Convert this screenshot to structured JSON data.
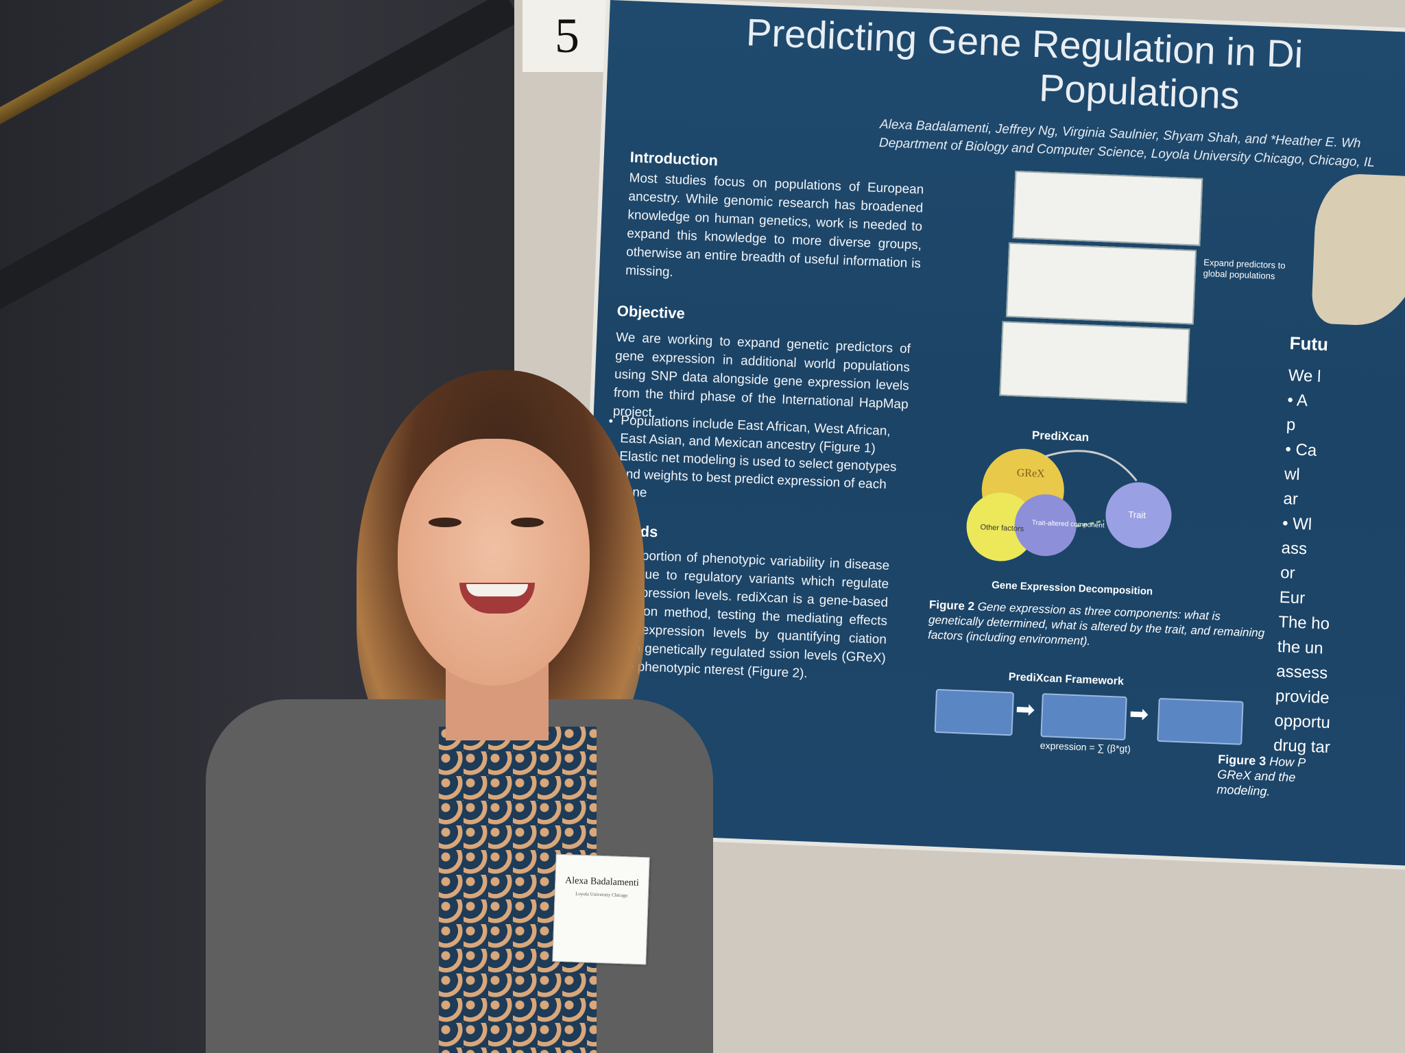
{
  "station_number": "5",
  "poster": {
    "title_line1": "Predicting Gene Regulation in Di",
    "title_line2": "Populations",
    "authors": "Alexa Badalamenti, Jeffrey Ng, Virginia Saulnier, Shyam Shah, and *Heather E. Wh",
    "department": "Department of Biology and Computer Science, Loyola University Chicago, Chicago, IL",
    "intro_heading": "Introduction",
    "intro_text": "Most studies focus on populations of European ancestry. While genomic research has broadened knowledge on human genetics, work is needed to expand this knowledge to more diverse groups, otherwise an entire breadth of useful information is missing.",
    "objective_heading": "Objective",
    "objective_text": "We are working to expand genetic predictors of gene expression in additional world populations using SNP data alongside gene expression levels from the third phase of the International HapMap project.",
    "objective_bullets": [
      "Populations include East African, West African, East Asian, and Mexican ancestry (Figure 1)",
      "Elastic net modeling is used to select genotypes and weights to best predict expression of each gene"
    ],
    "methods_heading": "Methods",
    "methods_text": "A large portion of phenotypic variability in disease risk is due to regulatory variants which regulate gene expression levels. rediXcan is a gene-based association method, testing the mediating effects of ene expression levels by quantifying ciation between genetically regulated ssion levels (GReX) and the phenotypic nterest (Figure 2).",
    "fig1_note": "Expand predictors to global populations",
    "prediXcan_label": "PrediXcan",
    "venn_grex": "GReX",
    "venn_other": "Other factors",
    "venn_trait_altered": "Trait-altered component",
    "venn_trait": "Trait",
    "venn_caption_title": "Gene Expression Decomposition",
    "fig2_label": "Figure 2",
    "fig2_caption": "Gene expression as three components: what is genetically determined, what is altered by the trait, and remaining factors (including environment).",
    "framework_title": "PrediXcan Framework",
    "framework_formula": "expression = ∑ (β*gt)",
    "future_heading": "Futu",
    "future_lines": [
      "We l",
      "• A",
      "p",
      "• Ca",
      "wl",
      "ar",
      "• Wl",
      "ass",
      "or",
      "Eur",
      "The ho",
      "the un",
      "assess",
      "provide",
      "opportu",
      "drug tar"
    ],
    "fig3_label": "Figure 3",
    "fig3_caption": "How P GReX and the modeling."
  },
  "badge": {
    "name": "Alexa Badalamenti",
    "affiliation": "Loyola University Chicago"
  }
}
